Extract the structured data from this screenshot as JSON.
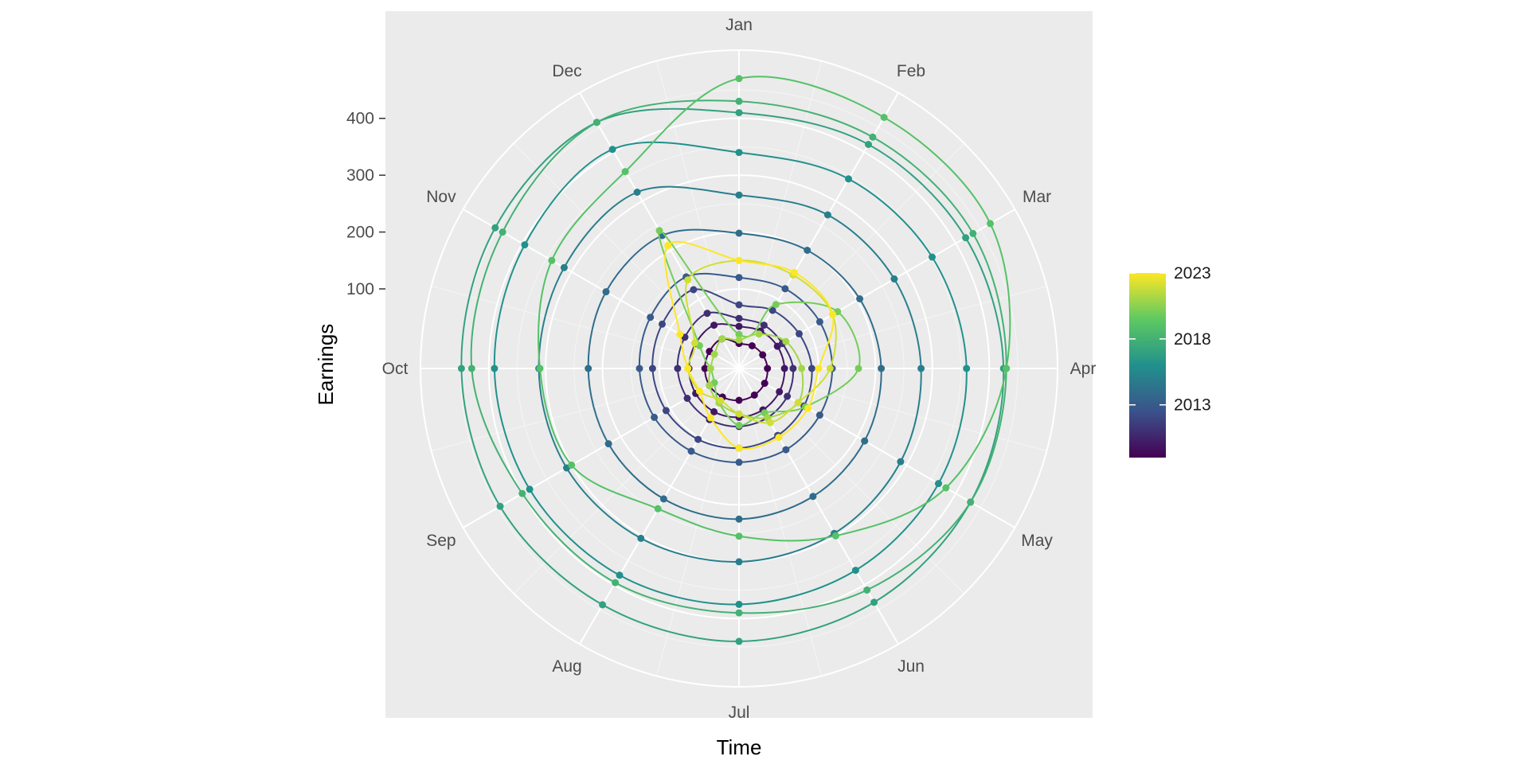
{
  "chart_data": {
    "type": "line",
    "coordinate_system": "polar",
    "xlabel": "Time",
    "ylabel": "Earnings",
    "angular_axis": {
      "categories": [
        "Jan",
        "Feb",
        "Mar",
        "Apr",
        "May",
        "Jun",
        "Jul",
        "Aug",
        "Sep",
        "Oct",
        "Nov",
        "Dec"
      ]
    },
    "radial_axis": {
      "ticks": [
        100,
        200,
        300,
        400
      ],
      "range": [
        -40,
        520
      ]
    },
    "grid": true,
    "legend": {
      "type": "colorbar",
      "placement": "right",
      "labels": [
        "2023",
        "2018",
        "2013"
      ],
      "label_values": [
        2023,
        2018,
        2013
      ],
      "range": [
        2009,
        2023
      ],
      "colors": [
        "#440154",
        "#3b528b",
        "#21918c",
        "#5ec962",
        "#fde725"
      ]
    },
    "series": [
      {
        "year": 2009,
        "values": [
          4,
          6,
          8,
          10,
          12,
          14,
          16,
          18,
          20,
          20,
          20,
          20
        ]
      },
      {
        "year": 2010,
        "values": [
          34,
          36,
          38,
          40,
          42,
          44,
          46,
          48,
          48,
          48,
          48,
          48
        ]
      },
      {
        "year": 2011,
        "values": [
          48,
          48,
          48,
          55,
          58,
          60,
          62,
          64,
          65,
          68,
          70,
          72
        ]
      },
      {
        "year": 2012,
        "values": [
          72,
          78,
          82,
          88,
          92,
          96,
          100,
          104,
          108,
          112,
          116,
          120
        ]
      },
      {
        "year": 2013,
        "values": [
          120,
          122,
          124,
          124,
          124,
          125,
          125,
          128,
          132,
          135,
          140,
          146
        ]
      },
      {
        "year": 2014,
        "values": [
          198,
          200,
          205,
          210,
          215,
          220,
          225,
          225,
          225,
          225,
          230,
          230
        ]
      },
      {
        "year": 2015,
        "values": [
          265,
          272,
          275,
          280,
          288,
          295,
          300,
          305,
          310,
          312,
          315,
          318
        ]
      },
      {
        "year": 2016,
        "values": [
          340,
          345,
          352,
          360,
          365,
          370,
          375,
          380,
          385,
          390,
          395,
          405
        ]
      },
      {
        "year": 2017,
        "values": [
          410,
          415,
          420,
          425,
          430,
          435,
          440,
          440,
          445,
          448,
          455,
          460
        ]
      },
      {
        "year": 2018,
        "values": [
          430,
          430,
          435,
          430,
          430,
          410,
          390,
          395,
          400,
          430,
          440,
          460
        ]
      },
      {
        "year": 2019,
        "values": [
          470,
          470,
          470,
          430,
          380,
          300,
          255,
          245,
          300,
          310,
          340,
          360
        ]
      },
      {
        "year": 2020,
        "values": [
          20,
          90,
          160,
          170,
          95,
          50,
          60,
          30,
          10,
          10,
          40,
          240
        ]
      },
      {
        "year": 2021,
        "values": [
          10,
          30,
          55,
          70,
          80,
          60,
          40,
          30,
          20,
          10,
          10,
          20
        ]
      },
      {
        "year": 2022,
        "values": [
          150,
          150,
          150,
          120,
          80,
          70,
          40,
          25,
          40,
          50,
          50,
          140
        ]
      },
      {
        "year": 2023,
        "values": [
          150,
          155,
          150,
          100,
          100,
          100,
          100,
          60,
          40,
          50,
          80,
          210
        ]
      }
    ]
  }
}
